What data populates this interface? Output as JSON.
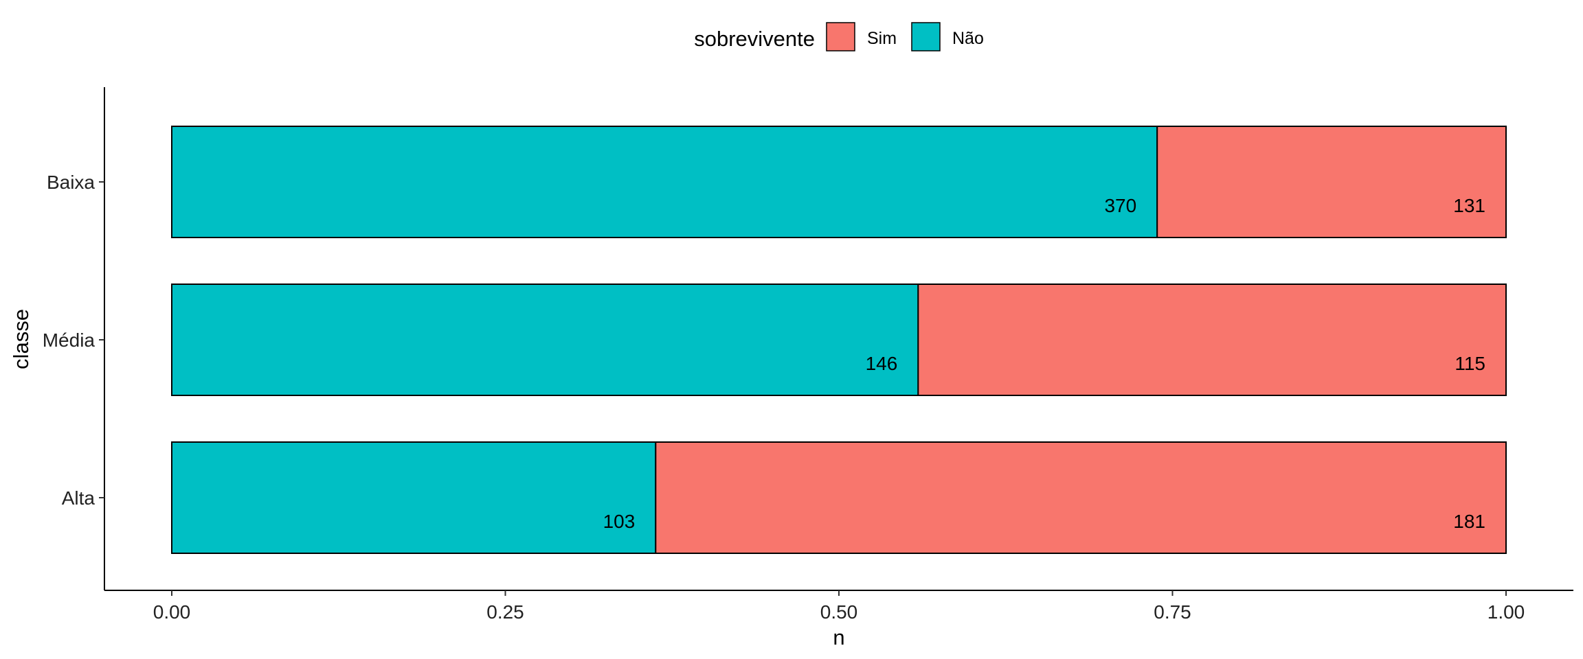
{
  "chart_data": {
    "type": "bar",
    "orientation": "horizontal",
    "stacked": true,
    "normalized": true,
    "categories": [
      "Alta",
      "Média",
      "Baixa"
    ],
    "series": [
      {
        "name": "Não",
        "color": "#00BFC4",
        "counts": [
          103,
          146,
          370
        ]
      },
      {
        "name": "Sim",
        "color": "#F8766D",
        "counts": [
          181,
          115,
          131
        ]
      }
    ],
    "xlabel": "n",
    "ylabel": "classe",
    "xlim": [
      0,
      1
    ],
    "xticks": [
      "0.00",
      "0.25",
      "0.50",
      "0.75",
      "1.00"
    ],
    "legend": {
      "title": "sobrevivente",
      "position": "top",
      "entries": [
        "Sim",
        "Não"
      ]
    },
    "grid": false
  }
}
